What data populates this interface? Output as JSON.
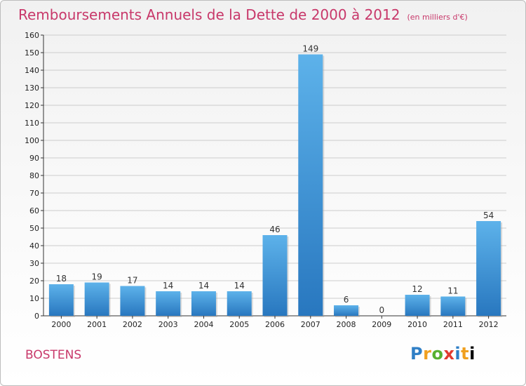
{
  "title": "Remboursements Annuels de la Dette de 2000 à 2012",
  "unit": "(en milliers d'€)",
  "commune": "BOSTENS",
  "logo": {
    "letters": [
      "P",
      "r",
      "o",
      "x",
      "i",
      "t",
      "i"
    ]
  },
  "colors": {
    "bar": "#3a8fd5",
    "bar_light": "#5db2ea",
    "title": "#c8386a",
    "grid": "#cccccc"
  },
  "chart_data": {
    "type": "bar",
    "title": "Remboursements Annuels de la Dette de 2000 à 2012",
    "xlabel": "",
    "ylabel": "",
    "categories": [
      "2000",
      "2001",
      "2002",
      "2003",
      "2004",
      "2005",
      "2006",
      "2007",
      "2008",
      "2009",
      "2010",
      "2011",
      "2012"
    ],
    "values": [
      18,
      19,
      17,
      14,
      14,
      14,
      46,
      149,
      6,
      0,
      12,
      11,
      54
    ],
    "ylim": [
      0,
      160
    ],
    "yticks": [
      0,
      10,
      20,
      30,
      40,
      50,
      60,
      70,
      80,
      90,
      100,
      110,
      120,
      130,
      140,
      150,
      160
    ],
    "grid": true
  }
}
